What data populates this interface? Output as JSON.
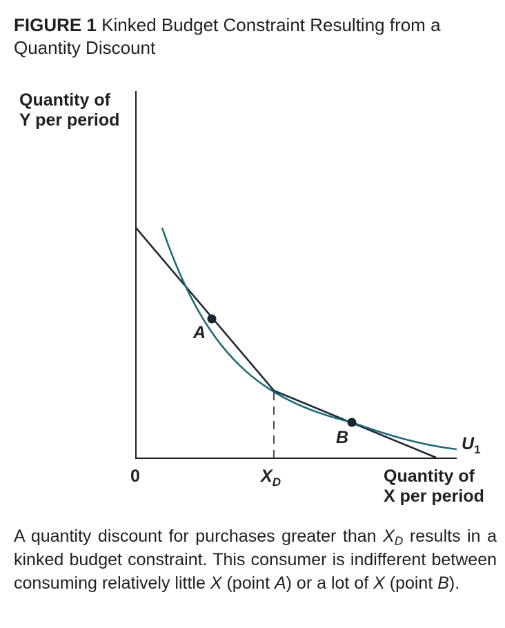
{
  "title": {
    "figure_number": "FIGURE 1",
    "text": "Kinked Budget Constraint Resulting from a Quantity Discount"
  },
  "axes": {
    "y_label_line1": "Quantity of",
    "y_label_line2": "Y per period",
    "x_label_line1": "Quantity of",
    "x_label_line2": "X per period",
    "origin": "0",
    "x_tick_main": "X",
    "x_tick_sub": "D"
  },
  "points": {
    "a": "A",
    "b": "B"
  },
  "curve": {
    "label_main": "U",
    "label_sub": "1"
  },
  "caption": {
    "p1": "A quantity discount for purchases greater than ",
    "xd_main": "X",
    "xd_sub": "D",
    "p2": " results in a kinked budget constraint. This consumer is indifferent between consuming relatively little ",
    "x1": "X",
    "p3": " (point ",
    "a": "A",
    "p4": ") or a lot of ",
    "x2": "X",
    "p5": " (point ",
    "b": "B",
    "p6": ")."
  },
  "colors": {
    "axis": "#231f20",
    "budget_line": "#1f2a36",
    "indifference_curve": "#1d6b7a",
    "point": "#1a2530"
  }
}
